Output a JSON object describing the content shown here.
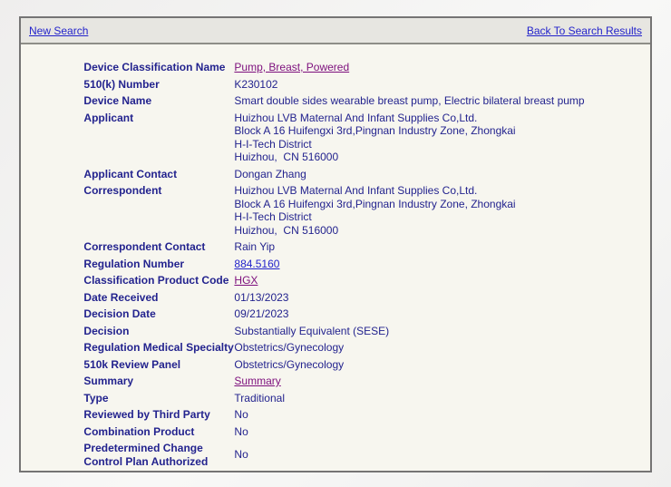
{
  "colors": {
    "page_background": "#efeeed",
    "panel_background": "#f7f6ef",
    "header_band_background": "#e7e6e1",
    "panel_border": "#757474",
    "text_navy": "#23238e",
    "link_blue": "#2323cb",
    "link_visited_purple": "#7d0f7d"
  },
  "header": {
    "new_search_label": "New Search",
    "back_to_results_label": "Back To Search Results"
  },
  "record": {
    "rows": [
      {
        "label": "Device Classification Name",
        "value": "Pump, Breast, Powered",
        "type": "visited-link"
      },
      {
        "label": "510(k) Number",
        "value": "K230102",
        "type": "text"
      },
      {
        "label": "Device Name",
        "value": "Smart double sides wearable breast pump, Electric bilateral breast pump",
        "type": "text"
      },
      {
        "label": "Applicant",
        "value": "Huizhou LVB Maternal And Infant Supplies Co,Ltd.\nBlock A 16 Huifengxi 3rd,Pingnan Industry Zone, Zhongkai\nH-I-Tech District\nHuizhou,  CN 516000",
        "type": "text"
      },
      {
        "label": "Applicant Contact",
        "value": "Dongan Zhang",
        "type": "text"
      },
      {
        "label": "Correspondent",
        "value": "Huizhou LVB Maternal And Infant Supplies Co,Ltd.\nBlock A 16 Huifengxi 3rd,Pingnan Industry Zone, Zhongkai\nH-I-Tech District\nHuizhou,  CN 516000",
        "type": "text"
      },
      {
        "label": "Correspondent Contact",
        "value": "Rain Yip",
        "type": "text"
      },
      {
        "label": "Regulation Number",
        "value": "884.5160",
        "type": "link"
      },
      {
        "label": "Classification Product Code",
        "value": "HGX",
        "type": "visited-link"
      },
      {
        "label": "Date Received",
        "value": "01/13/2023",
        "type": "text"
      },
      {
        "label": "Decision Date",
        "value": "09/21/2023",
        "type": "text"
      },
      {
        "label": "Decision",
        "value": "Substantially Equivalent (SESE)",
        "type": "text"
      },
      {
        "label": "Regulation Medical Specialty",
        "value": "Obstetrics/Gynecology",
        "type": "text"
      },
      {
        "label": "510k Review Panel",
        "value": "Obstetrics/Gynecology",
        "type": "text"
      },
      {
        "label": "Summary",
        "value": "Summary",
        "type": "visited-link"
      },
      {
        "label": "Type",
        "value": "Traditional",
        "type": "text"
      },
      {
        "label": "Reviewed by Third Party",
        "value": "No",
        "type": "text"
      },
      {
        "label": "Combination Product",
        "value": "No",
        "type": "text"
      },
      {
        "label": "Predetermined Change Control Plan Authorized",
        "value": "No",
        "type": "text"
      }
    ]
  }
}
